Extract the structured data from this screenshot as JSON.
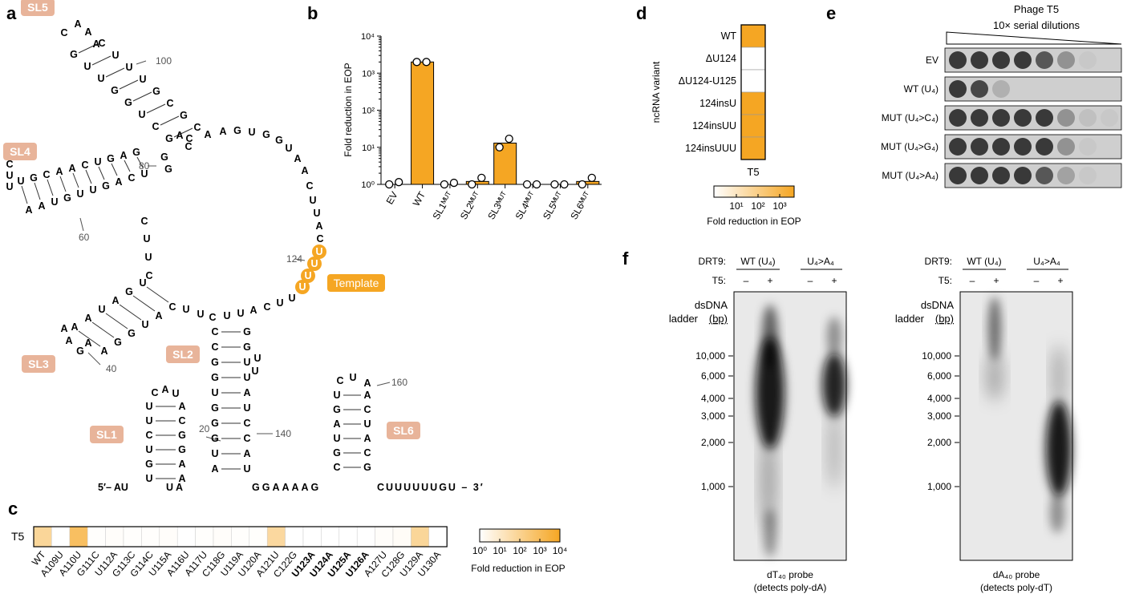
{
  "panels": {
    "a": "a",
    "b": "b",
    "c": "c",
    "d": "d",
    "e": "e",
    "f": "f"
  },
  "rna": {
    "five_prime": "5′– AU",
    "three_prime": "CUUUUUUGU – 3′",
    "linker_ua": "U  A",
    "linker_ggaaaag": "GGAAAAG",
    "stem_labels": [
      "SL1",
      "SL2",
      "SL3",
      "SL4",
      "SL5",
      "SL6"
    ],
    "template_label": "Template",
    "position_numbers": [
      "20",
      "40",
      "60",
      "80",
      "100",
      "124",
      "140",
      "160"
    ],
    "sl1": {
      "left": [
        "U",
        "U",
        "C",
        "U",
        "G",
        "U"
      ],
      "right": [
        "A",
        "C",
        "G",
        "G",
        "A",
        "A"
      ],
      "loop": [
        "C",
        "A",
        "U"
      ]
    },
    "sl2": {
      "left": [
        "C",
        "C",
        "G",
        "G",
        "U",
        "G",
        "G",
        "G",
        "U",
        "A"
      ],
      "right": [
        "G",
        "G",
        "U",
        "U",
        "A",
        "U",
        "C",
        "C",
        "A",
        "U"
      ],
      "bulge": [
        "U",
        "U"
      ]
    },
    "sl3": {
      "left": [
        "U",
        "G",
        "A",
        "U",
        "A",
        "A"
      ],
      "right": [
        "C",
        "A",
        "U",
        "G",
        "G",
        "A"
      ],
      "loop": [
        "A",
        "A",
        "G",
        "A"
      ]
    },
    "sl4": {
      "top": [
        "U",
        "G",
        "C",
        "A",
        "A",
        "C",
        "U",
        "G",
        "A",
        "G"
      ],
      "bottom": [
        "A",
        "A",
        "U",
        "G",
        "U",
        "U",
        "G",
        "A",
        "C",
        "U"
      ],
      "loop": [
        "C",
        "U",
        "U"
      ]
    },
    "sl5": {
      "left": [
        "G",
        "U",
        "U",
        "G",
        "G",
        "U",
        "C",
        "G"
      ],
      "right": [
        "C",
        "U",
        "U",
        "U",
        "G",
        "C",
        "G",
        "C"
      ],
      "loop": [
        "C",
        "A",
        "A",
        "A"
      ]
    },
    "sl6": {
      "left": [
        "U",
        "G",
        "A",
        "U",
        "G",
        "C"
      ],
      "right": [
        "A",
        "C",
        "U",
        "A",
        "C",
        "G"
      ],
      "loop": [
        "C",
        "U",
        "A"
      ]
    },
    "arc": [
      "C",
      "A",
      "A",
      "G",
      "U",
      "G",
      "G",
      "U",
      "A",
      "A",
      "C",
      "U",
      "U",
      "A",
      "C"
    ],
    "template_bases": [
      "U",
      "U",
      "U",
      "U"
    ],
    "junction": [
      "U",
      "U",
      "C",
      "A",
      "U",
      "U",
      "C",
      "U",
      "U"
    ],
    "sl4_base": [
      "C",
      "U",
      "U",
      "C"
    ]
  },
  "chart_data": [
    {
      "type": "bar",
      "panel": "b",
      "ylabel": "Fold reduction in EOP",
      "ytick_labels": [
        "10⁰",
        "10¹",
        "10²",
        "10³",
        "10⁴"
      ],
      "ylim": [
        1,
        10000
      ],
      "log_scale": true,
      "categories": [
        "EV",
        "WT",
        "SL1ᴹᵁᵀ",
        "SL2ᴹᵁᵀ",
        "SL3ᴹᵁᵀ",
        "SL4ᴹᵁᵀ",
        "SL5ᴹᵁᵀ",
        "SL6ᴹᵁᵀ"
      ],
      "values": [
        1,
        2000,
        1,
        1.2,
        13,
        1,
        1,
        1.2
      ],
      "points": [
        [
          1,
          1.15
        ],
        [
          2000,
          2000
        ],
        [
          1,
          1.1
        ],
        [
          1,
          1.5
        ],
        [
          10,
          17
        ],
        [
          1,
          1
        ],
        [
          1,
          1
        ],
        [
          1,
          1.5
        ]
      ],
      "bar_color": "#f5a623"
    },
    {
      "type": "heatmap",
      "panel": "c",
      "row_label": "T5",
      "categories": [
        "WT",
        "A109U",
        "A110U",
        "G111C",
        "U112A",
        "G113C",
        "G114C",
        "U115A",
        "A116U",
        "A117U",
        "C118G",
        "U119A",
        "U120A",
        "A121U",
        "C122G",
        "U123A",
        "U124A",
        "U125A",
        "U126A",
        "A127U",
        "C128G",
        "U129A",
        "U130A"
      ],
      "bold_categories": [
        "U123A",
        "U124A",
        "U125A",
        "U126A"
      ],
      "values": [
        30,
        1,
        200,
        1.1,
        1.2,
        1.1,
        1.1,
        1.2,
        1,
        1.1,
        1.2,
        1.1,
        1.1,
        25,
        1,
        1,
        1,
        1,
        1,
        1.2,
        1.3,
        30,
        1
      ],
      "colorbar_ticks": [
        "10⁰",
        "10¹",
        "10²",
        "10³",
        "10⁴"
      ],
      "colorbar_label": "Fold reduction in EOP",
      "colorscale": [
        "#ffffff",
        "#f5a623"
      ]
    },
    {
      "type": "heatmap",
      "panel": "d",
      "ylabel": "ncRNA variant",
      "column_label": "T5",
      "categories": [
        "WT",
        "ΔU124",
        "ΔU124-U125",
        "124insU",
        "124insUU",
        "124insUUU"
      ],
      "values": [
        1000,
        1,
        1,
        1000,
        1000,
        1000
      ],
      "colorbar_ticks": [
        "10¹",
        "10²",
        "10³"
      ],
      "colorbar_label": "Fold reduction in EOP"
    }
  ],
  "plaque": {
    "title": "Phage T5",
    "subtitle": "10× serial dilutions",
    "rows": [
      {
        "label": "EV",
        "spots": [
          1,
          1,
          1,
          1,
          0.8,
          0.4,
          0.05,
          0
        ]
      },
      {
        "label": "WT (U₄)",
        "spots": [
          1,
          0.9,
          0.2,
          0,
          0,
          0,
          0,
          0
        ]
      },
      {
        "label": "MUT (U₄>C₄)",
        "spots": [
          1,
          1,
          1,
          1,
          1,
          0.4,
          0.1,
          0.05
        ]
      },
      {
        "label": "MUT (U₄>G₄)",
        "spots": [
          1,
          1,
          1,
          1,
          1,
          0.4,
          0.05,
          0
        ]
      },
      {
        "label": "MUT (U₄>A₄)",
        "spots": [
          1,
          1,
          1,
          1,
          0.8,
          0.3,
          0.05,
          0
        ]
      }
    ]
  },
  "blots": {
    "drt9_label": "DRT9:",
    "t5_label": "T5:",
    "wt_label": "WT (U₄)",
    "mut_label": "U₄>A₄",
    "minus": "–",
    "plus": "+",
    "ladder_title_1": "dsDNA",
    "ladder_title_2": "ladder",
    "ladder_unit": "(bp)",
    "ladder": [
      "10,000",
      "6,000",
      "4,000",
      "3,000",
      "2,000",
      "1,000"
    ],
    "left_probe": "dT₄₀ probe",
    "left_probe_note": "(detects poly-dA)",
    "right_probe": "dA₄₀ probe",
    "right_probe_note": "(detects poly-dT)"
  },
  "colors": {
    "orange": "#f5a623",
    "salmon": "#e8b49a",
    "blot_bg": "#e9e9e9"
  }
}
